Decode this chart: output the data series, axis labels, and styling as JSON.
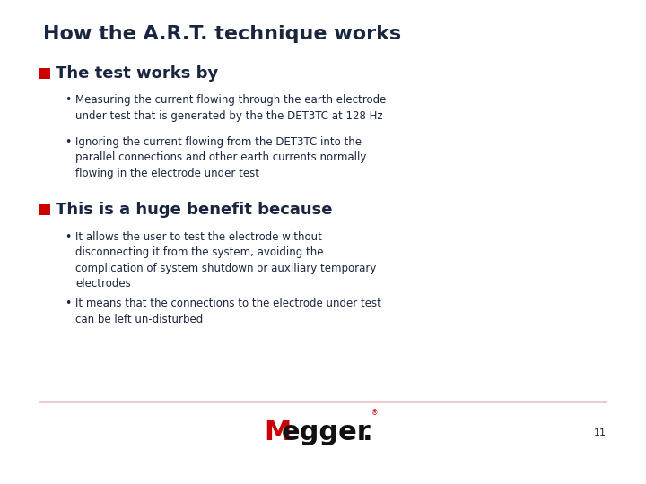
{
  "title": "How the A.R.T. technique works",
  "title_color": "#1a2540",
  "title_fontsize": 16,
  "background_color": "#ffffff",
  "bullet_color": "#cc0000",
  "text_color": "#1a2540",
  "sub_text_color": "#1a2540",
  "section1_header": "The test works by",
  "section1_header_fontsize": 13,
  "section1_bullets": [
    "Measuring the current flowing through the earth electrode\nunder test that is generated by the the DET3TC at 128 Hz",
    "Ignoring the current flowing from the DET3TC into the\nparallel connections and other earth currents normally\nflowing in the electrode under test"
  ],
  "section2_header": "This is a huge benefit because",
  "section2_header_fontsize": 13,
  "section2_bullets": [
    "It allows the user to test the electrode without\ndisconnecting it from the system, avoiding the\ncomplication of system shutdown or auxiliary temporary\nelectrodes",
    "It means that the connections to the electrode under test\ncan be left un-disturbed"
  ],
  "bullet_fontsize": 8.5,
  "footer_line_color": "#8b0000",
  "page_number": "11",
  "logo_M_color": "#cc0000",
  "logo_egger_color": "#111111",
  "logo_dot_color": "#111111",
  "logo_reg_color": "#cc0000"
}
